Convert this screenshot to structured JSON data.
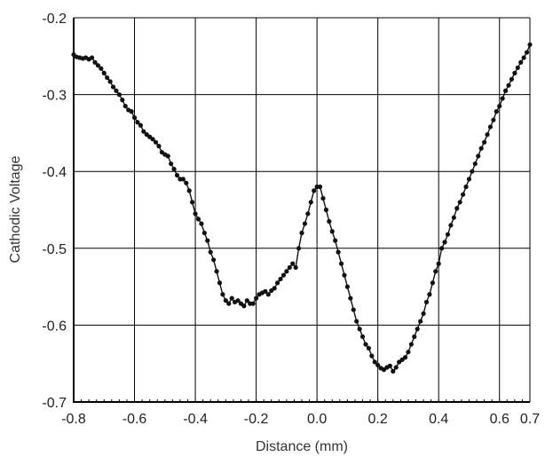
{
  "chart_data": {
    "type": "scatter",
    "title": "",
    "xlabel": "Distance (mm)",
    "ylabel": "Cathodic Voltage",
    "xlim": [
      -0.8,
      0.7
    ],
    "ylim": [
      -0.7,
      -0.2
    ],
    "grid": true,
    "x_ticks": [
      -0.8,
      -0.6,
      -0.4,
      -0.2,
      0.0,
      0.2,
      0.4,
      0.6,
      0.7
    ],
    "x_tick_labels": [
      "-0.8",
      "-0.6",
      "-0.4",
      "-0.2",
      "0.0",
      "0.2",
      "0.4",
      "0.6",
      "0.7"
    ],
    "y_ticks": [
      -0.2,
      -0.3,
      -0.4,
      -0.5,
      -0.6,
      -0.7
    ],
    "y_tick_labels": [
      "-0.2",
      "-0.3",
      "-0.4",
      "-0.5",
      "-0.6",
      "-0.7"
    ],
    "series": [
      {
        "color": "#111111",
        "line": true,
        "marker": "circle",
        "points": [
          [
            -0.8,
            -0.248
          ],
          [
            -0.79,
            -0.251
          ],
          [
            -0.78,
            -0.252
          ],
          [
            -0.77,
            -0.253
          ],
          [
            -0.76,
            -0.252
          ],
          [
            -0.75,
            -0.254
          ],
          [
            -0.74,
            -0.252
          ],
          [
            -0.73,
            -0.258
          ],
          [
            -0.72,
            -0.262
          ],
          [
            -0.71,
            -0.266
          ],
          [
            -0.7,
            -0.272
          ],
          [
            -0.69,
            -0.278
          ],
          [
            -0.68,
            -0.283
          ],
          [
            -0.67,
            -0.29
          ],
          [
            -0.66,
            -0.295
          ],
          [
            -0.65,
            -0.3
          ],
          [
            -0.64,
            -0.307
          ],
          [
            -0.63,
            -0.315
          ],
          [
            -0.62,
            -0.32
          ],
          [
            -0.61,
            -0.322
          ],
          [
            -0.6,
            -0.33
          ],
          [
            -0.59,
            -0.336
          ],
          [
            -0.58,
            -0.34
          ],
          [
            -0.57,
            -0.348
          ],
          [
            -0.56,
            -0.352
          ],
          [
            -0.55,
            -0.355
          ],
          [
            -0.54,
            -0.358
          ],
          [
            -0.53,
            -0.362
          ],
          [
            -0.52,
            -0.367
          ],
          [
            -0.51,
            -0.375
          ],
          [
            -0.5,
            -0.378
          ],
          [
            -0.49,
            -0.38
          ],
          [
            -0.48,
            -0.39
          ],
          [
            -0.47,
            -0.397
          ],
          [
            -0.46,
            -0.405
          ],
          [
            -0.45,
            -0.41
          ],
          [
            -0.44,
            -0.41
          ],
          [
            -0.43,
            -0.415
          ],
          [
            -0.42,
            -0.425
          ],
          [
            -0.41,
            -0.44
          ],
          [
            -0.4,
            -0.455
          ],
          [
            -0.39,
            -0.462
          ],
          [
            -0.38,
            -0.468
          ],
          [
            -0.37,
            -0.48
          ],
          [
            -0.36,
            -0.49
          ],
          [
            -0.35,
            -0.505
          ],
          [
            -0.34,
            -0.515
          ],
          [
            -0.33,
            -0.53
          ],
          [
            -0.32,
            -0.545
          ],
          [
            -0.31,
            -0.56
          ],
          [
            -0.3,
            -0.568
          ],
          [
            -0.29,
            -0.572
          ],
          [
            -0.28,
            -0.565
          ],
          [
            -0.27,
            -0.57
          ],
          [
            -0.26,
            -0.568
          ],
          [
            -0.25,
            -0.572
          ],
          [
            -0.24,
            -0.575
          ],
          [
            -0.23,
            -0.568
          ],
          [
            -0.22,
            -0.572
          ],
          [
            -0.21,
            -0.572
          ],
          [
            -0.2,
            -0.565
          ],
          [
            -0.19,
            -0.56
          ],
          [
            -0.18,
            -0.558
          ],
          [
            -0.17,
            -0.556
          ],
          [
            -0.16,
            -0.56
          ],
          [
            -0.15,
            -0.555
          ],
          [
            -0.14,
            -0.552
          ],
          [
            -0.13,
            -0.545
          ],
          [
            -0.12,
            -0.54
          ],
          [
            -0.11,
            -0.535
          ],
          [
            -0.1,
            -0.53
          ],
          [
            -0.09,
            -0.525
          ],
          [
            -0.08,
            -0.52
          ],
          [
            -0.07,
            -0.525
          ],
          [
            -0.06,
            -0.5
          ],
          [
            -0.05,
            -0.48
          ],
          [
            -0.04,
            -0.468
          ],
          [
            -0.03,
            -0.455
          ],
          [
            -0.02,
            -0.44
          ],
          [
            -0.01,
            -0.425
          ],
          [
            0.0,
            -0.42
          ],
          [
            0.01,
            -0.42
          ],
          [
            0.02,
            -0.435
          ],
          [
            0.03,
            -0.45
          ],
          [
            0.04,
            -0.465
          ],
          [
            0.05,
            -0.478
          ],
          [
            0.06,
            -0.49
          ],
          [
            0.07,
            -0.505
          ],
          [
            0.08,
            -0.52
          ],
          [
            0.09,
            -0.535
          ],
          [
            0.1,
            -0.55
          ],
          [
            0.11,
            -0.565
          ],
          [
            0.12,
            -0.58
          ],
          [
            0.13,
            -0.595
          ],
          [
            0.14,
            -0.605
          ],
          [
            0.15,
            -0.615
          ],
          [
            0.16,
            -0.625
          ],
          [
            0.17,
            -0.63
          ],
          [
            0.18,
            -0.64
          ],
          [
            0.19,
            -0.648
          ],
          [
            0.2,
            -0.652
          ],
          [
            0.21,
            -0.656
          ],
          [
            0.22,
            -0.658
          ],
          [
            0.23,
            -0.655
          ],
          [
            0.24,
            -0.653
          ],
          [
            0.25,
            -0.66
          ],
          [
            0.26,
            -0.655
          ],
          [
            0.27,
            -0.648
          ],
          [
            0.28,
            -0.645
          ],
          [
            0.29,
            -0.642
          ],
          [
            0.3,
            -0.635
          ],
          [
            0.31,
            -0.625
          ],
          [
            0.32,
            -0.615
          ],
          [
            0.33,
            -0.605
          ],
          [
            0.34,
            -0.595
          ],
          [
            0.35,
            -0.585
          ],
          [
            0.36,
            -0.57
          ],
          [
            0.37,
            -0.56
          ],
          [
            0.38,
            -0.545
          ],
          [
            0.39,
            -0.53
          ],
          [
            0.4,
            -0.52
          ],
          [
            0.41,
            -0.5
          ],
          [
            0.42,
            -0.492
          ],
          [
            0.43,
            -0.482
          ],
          [
            0.44,
            -0.47
          ],
          [
            0.45,
            -0.46
          ],
          [
            0.46,
            -0.448
          ],
          [
            0.47,
            -0.44
          ],
          [
            0.48,
            -0.43
          ],
          [
            0.49,
            -0.42
          ],
          [
            0.5,
            -0.41
          ],
          [
            0.51,
            -0.4
          ],
          [
            0.52,
            -0.39
          ],
          [
            0.53,
            -0.38
          ],
          [
            0.54,
            -0.37
          ],
          [
            0.55,
            -0.362
          ],
          [
            0.56,
            -0.352
          ],
          [
            0.57,
            -0.342
          ],
          [
            0.58,
            -0.333
          ],
          [
            0.59,
            -0.322
          ],
          [
            0.6,
            -0.315
          ],
          [
            0.61,
            -0.305
          ],
          [
            0.62,
            -0.295
          ],
          [
            0.63,
            -0.288
          ],
          [
            0.64,
            -0.28
          ],
          [
            0.65,
            -0.272
          ],
          [
            0.66,
            -0.265
          ],
          [
            0.67,
            -0.258
          ],
          [
            0.68,
            -0.252
          ],
          [
            0.69,
            -0.245
          ],
          [
            0.7,
            -0.235
          ]
        ]
      }
    ]
  }
}
